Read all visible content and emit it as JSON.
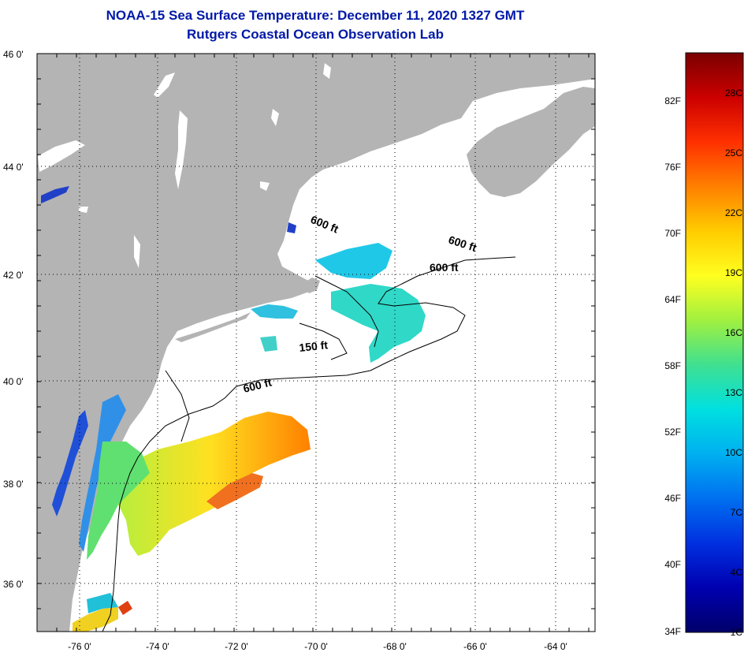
{
  "header": {
    "title": "NOAA-15 Sea Surface Temperature:  December 11, 2020 1327 GMT",
    "subtitle": "Rutgers Coastal Ocean Observation Lab"
  },
  "map": {
    "lat_labels": [
      "46 0'",
      "44 0'",
      "42 0'",
      "40 0'",
      "38 0'",
      "36 0'"
    ],
    "lon_labels": [
      "-76 0'",
      "-74 0'",
      "-72 0'",
      "-70 0'",
      "-68 0'",
      "-66 0'",
      "-64 0'"
    ],
    "contour_labels": [
      {
        "id": "c1",
        "text": "600 ft"
      },
      {
        "id": "c2",
        "text": "600 ft"
      },
      {
        "id": "c3",
        "text": "600 ft"
      },
      {
        "id": "c4",
        "text": "150 ft"
      },
      {
        "id": "c5",
        "text": "600 ft"
      }
    ],
    "colors": {
      "land": "#b4b4b4",
      "ocean_cloud": "#ffffff",
      "contour": "#000000"
    }
  },
  "colorbar": {
    "fahrenheit": [
      "82F",
      "76F",
      "70F",
      "64F",
      "58F",
      "52F",
      "46F",
      "40F",
      "34F"
    ],
    "celsius": [
      "28C",
      "25C",
      "22C",
      "19C",
      "16C",
      "13C",
      "10C",
      "7C",
      "4C",
      "1C"
    ],
    "gradient": [
      "#7a0000",
      "#cc0000",
      "#ff3000",
      "#ff8000",
      "#ffcc00",
      "#ffff20",
      "#a0f040",
      "#40e090",
      "#00e0e0",
      "#00b0f0",
      "#0070f0",
      "#0030e0",
      "#0000b0",
      "#00006a"
    ]
  }
}
